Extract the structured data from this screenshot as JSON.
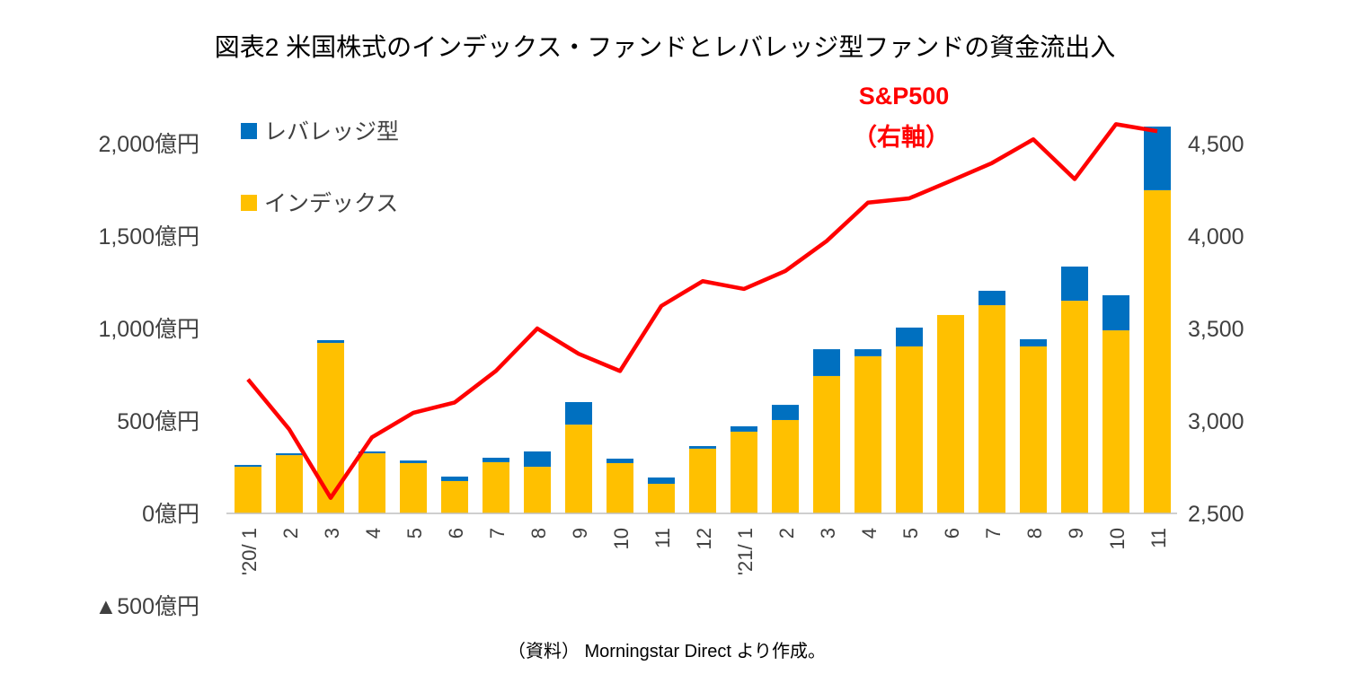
{
  "chart_data": {
    "type": "bar",
    "title": "図表2 米国株式のインデックス・ファンドとレバレッジ型ファンドの資金流出入",
    "source": "（資料） Morningstar Direct より作成。",
    "categories": [
      "'20/ 1",
      "2",
      "3",
      "4",
      "5",
      "6",
      "7",
      "8",
      "9",
      "10",
      "11",
      "12",
      "'21/ 1",
      "2",
      "3",
      "4",
      "5",
      "6",
      "7",
      "8",
      "9",
      "10",
      "11"
    ],
    "left_axis": {
      "ylim": [
        -500,
        2000
      ],
      "ticks": [
        -500,
        0,
        500,
        1000,
        1500,
        2000
      ],
      "tick_labels": [
        "▲500億円",
        "0億円",
        "500億円",
        "1,000億円",
        "1,500億円",
        "2,000億円"
      ]
    },
    "right_axis": {
      "ylim": [
        2000,
        4500
      ],
      "ticks": [
        2500,
        3000,
        3500,
        4000,
        4500
      ],
      "tick_labels": [
        "2,500",
        "3,000",
        "3,500",
        "4,000",
        "4,500"
      ]
    },
    "series": [
      {
        "name": "インデックス",
        "kind": "stacked-bar",
        "axis": "left",
        "color": "#FFC000",
        "values": [
          252,
          315,
          922,
          325,
          272,
          175,
          277,
          252,
          480,
          272,
          160,
          350,
          442,
          505,
          743,
          850,
          903,
          1073,
          1126,
          903,
          1150,
          990,
          1748
        ]
      },
      {
        "name": "レバレッジ型",
        "kind": "stacked-bar",
        "axis": "left",
        "color": "#0070C0",
        "values": [
          10,
          10,
          15,
          10,
          14,
          24,
          24,
          83,
          122,
          24,
          34,
          14,
          29,
          82,
          145,
          38,
          102,
          0,
          78,
          39,
          185,
          190,
          344
        ]
      },
      {
        "name": "S&P500",
        "kind": "line",
        "axis": "right",
        "color": "#FF0000",
        "values": [
          3225,
          2954,
          2584,
          2912,
          3044,
          3100,
          3271,
          3500,
          3363,
          3270,
          3622,
          3756,
          3714,
          3811,
          3973,
          4181,
          4204,
          4298,
          4395,
          4523,
          4308,
          4605,
          4567
        ]
      }
    ],
    "annotation": {
      "line1": "S&P500",
      "line2": "（右軸）"
    },
    "legend": {
      "placement": "top-left",
      "items": [
        "レバレッジ型",
        "インデックス"
      ]
    },
    "grid": false
  }
}
